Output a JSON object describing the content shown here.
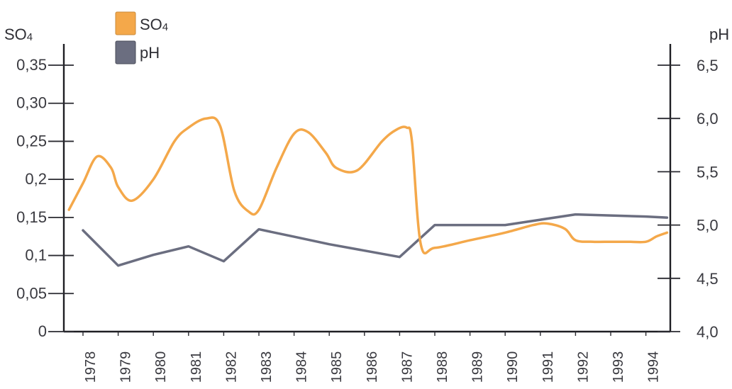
{
  "chart_data": {
    "type": "line",
    "left_axis_label": "SO4",
    "right_axis_label": "pH",
    "left_ticks": [
      "0",
      "0,05",
      "0,1",
      "0,15",
      "0,2",
      "0,25",
      "0,30",
      "0,35"
    ],
    "left_tick_values": [
      0,
      0.05,
      0.1,
      0.15,
      0.2,
      0.25,
      0.3,
      0.35
    ],
    "right_ticks": [
      "4,0",
      "4,5",
      "5,0",
      "5,5",
      "6,0",
      "6,5"
    ],
    "right_tick_values": [
      4.0,
      4.5,
      5.0,
      5.5,
      6.0,
      6.5
    ],
    "ylim_left": [
      0,
      0.375
    ],
    "ylim_right": [
      4.0,
      6.6
    ],
    "x_categories": [
      "1978",
      "1979",
      "1980",
      "1981",
      "1982",
      "1983",
      "1984",
      "1985",
      "1986",
      "1987",
      "1988",
      "1989",
      "1990",
      "1991",
      "1992",
      "1993",
      "1994"
    ],
    "legend": [
      {
        "name": "SO4",
        "color": "#f4a84a"
      },
      {
        "name": "pH",
        "color": "#6b6e80"
      }
    ],
    "series": [
      {
        "name": "SO4",
        "axis": "left",
        "color": "#f4a84a",
        "x": [
          1977.6,
          1978.0,
          1978.4,
          1978.8,
          1979.0,
          1979.4,
          1980.0,
          1980.6,
          1981.0,
          1981.5,
          1981.9,
          1982.3,
          1982.7,
          1983.0,
          1983.5,
          1984.0,
          1984.4,
          1984.9,
          1985.2,
          1985.8,
          1986.5,
          1986.9,
          1987.2,
          1987.35,
          1987.6,
          1988.0,
          1989.0,
          1990.0,
          1990.8,
          1991.2,
          1991.7,
          1992.0,
          1992.5,
          1993.0,
          1993.5,
          1994.0,
          1994.3,
          1994.6
        ],
        "y": [
          0.16,
          0.195,
          0.23,
          0.215,
          0.19,
          0.172,
          0.2,
          0.25,
          0.268,
          0.28,
          0.27,
          0.185,
          0.158,
          0.16,
          0.215,
          0.26,
          0.262,
          0.235,
          0.215,
          0.212,
          0.25,
          0.265,
          0.268,
          0.25,
          0.115,
          0.11,
          0.12,
          0.13,
          0.14,
          0.142,
          0.135,
          0.12,
          0.118,
          0.118,
          0.118,
          0.118,
          0.125,
          0.13
        ]
      },
      {
        "name": "pH",
        "axis": "right",
        "color": "#6b6e80",
        "x": [
          1978.0,
          1979.0,
          1980.0,
          1981.0,
          1982.0,
          1983.0,
          1984.0,
          1985.0,
          1986.0,
          1987.0,
          1988.0,
          1989.0,
          1990.0,
          1991.0,
          1992.0,
          1993.0,
          1994.0,
          1994.6
        ],
        "y": [
          4.95,
          4.62,
          4.72,
          4.8,
          4.66,
          4.96,
          4.89,
          4.82,
          4.76,
          4.7,
          5.0,
          5.0,
          5.0,
          5.05,
          5.1,
          5.09,
          5.08,
          5.07
        ]
      }
    ]
  }
}
